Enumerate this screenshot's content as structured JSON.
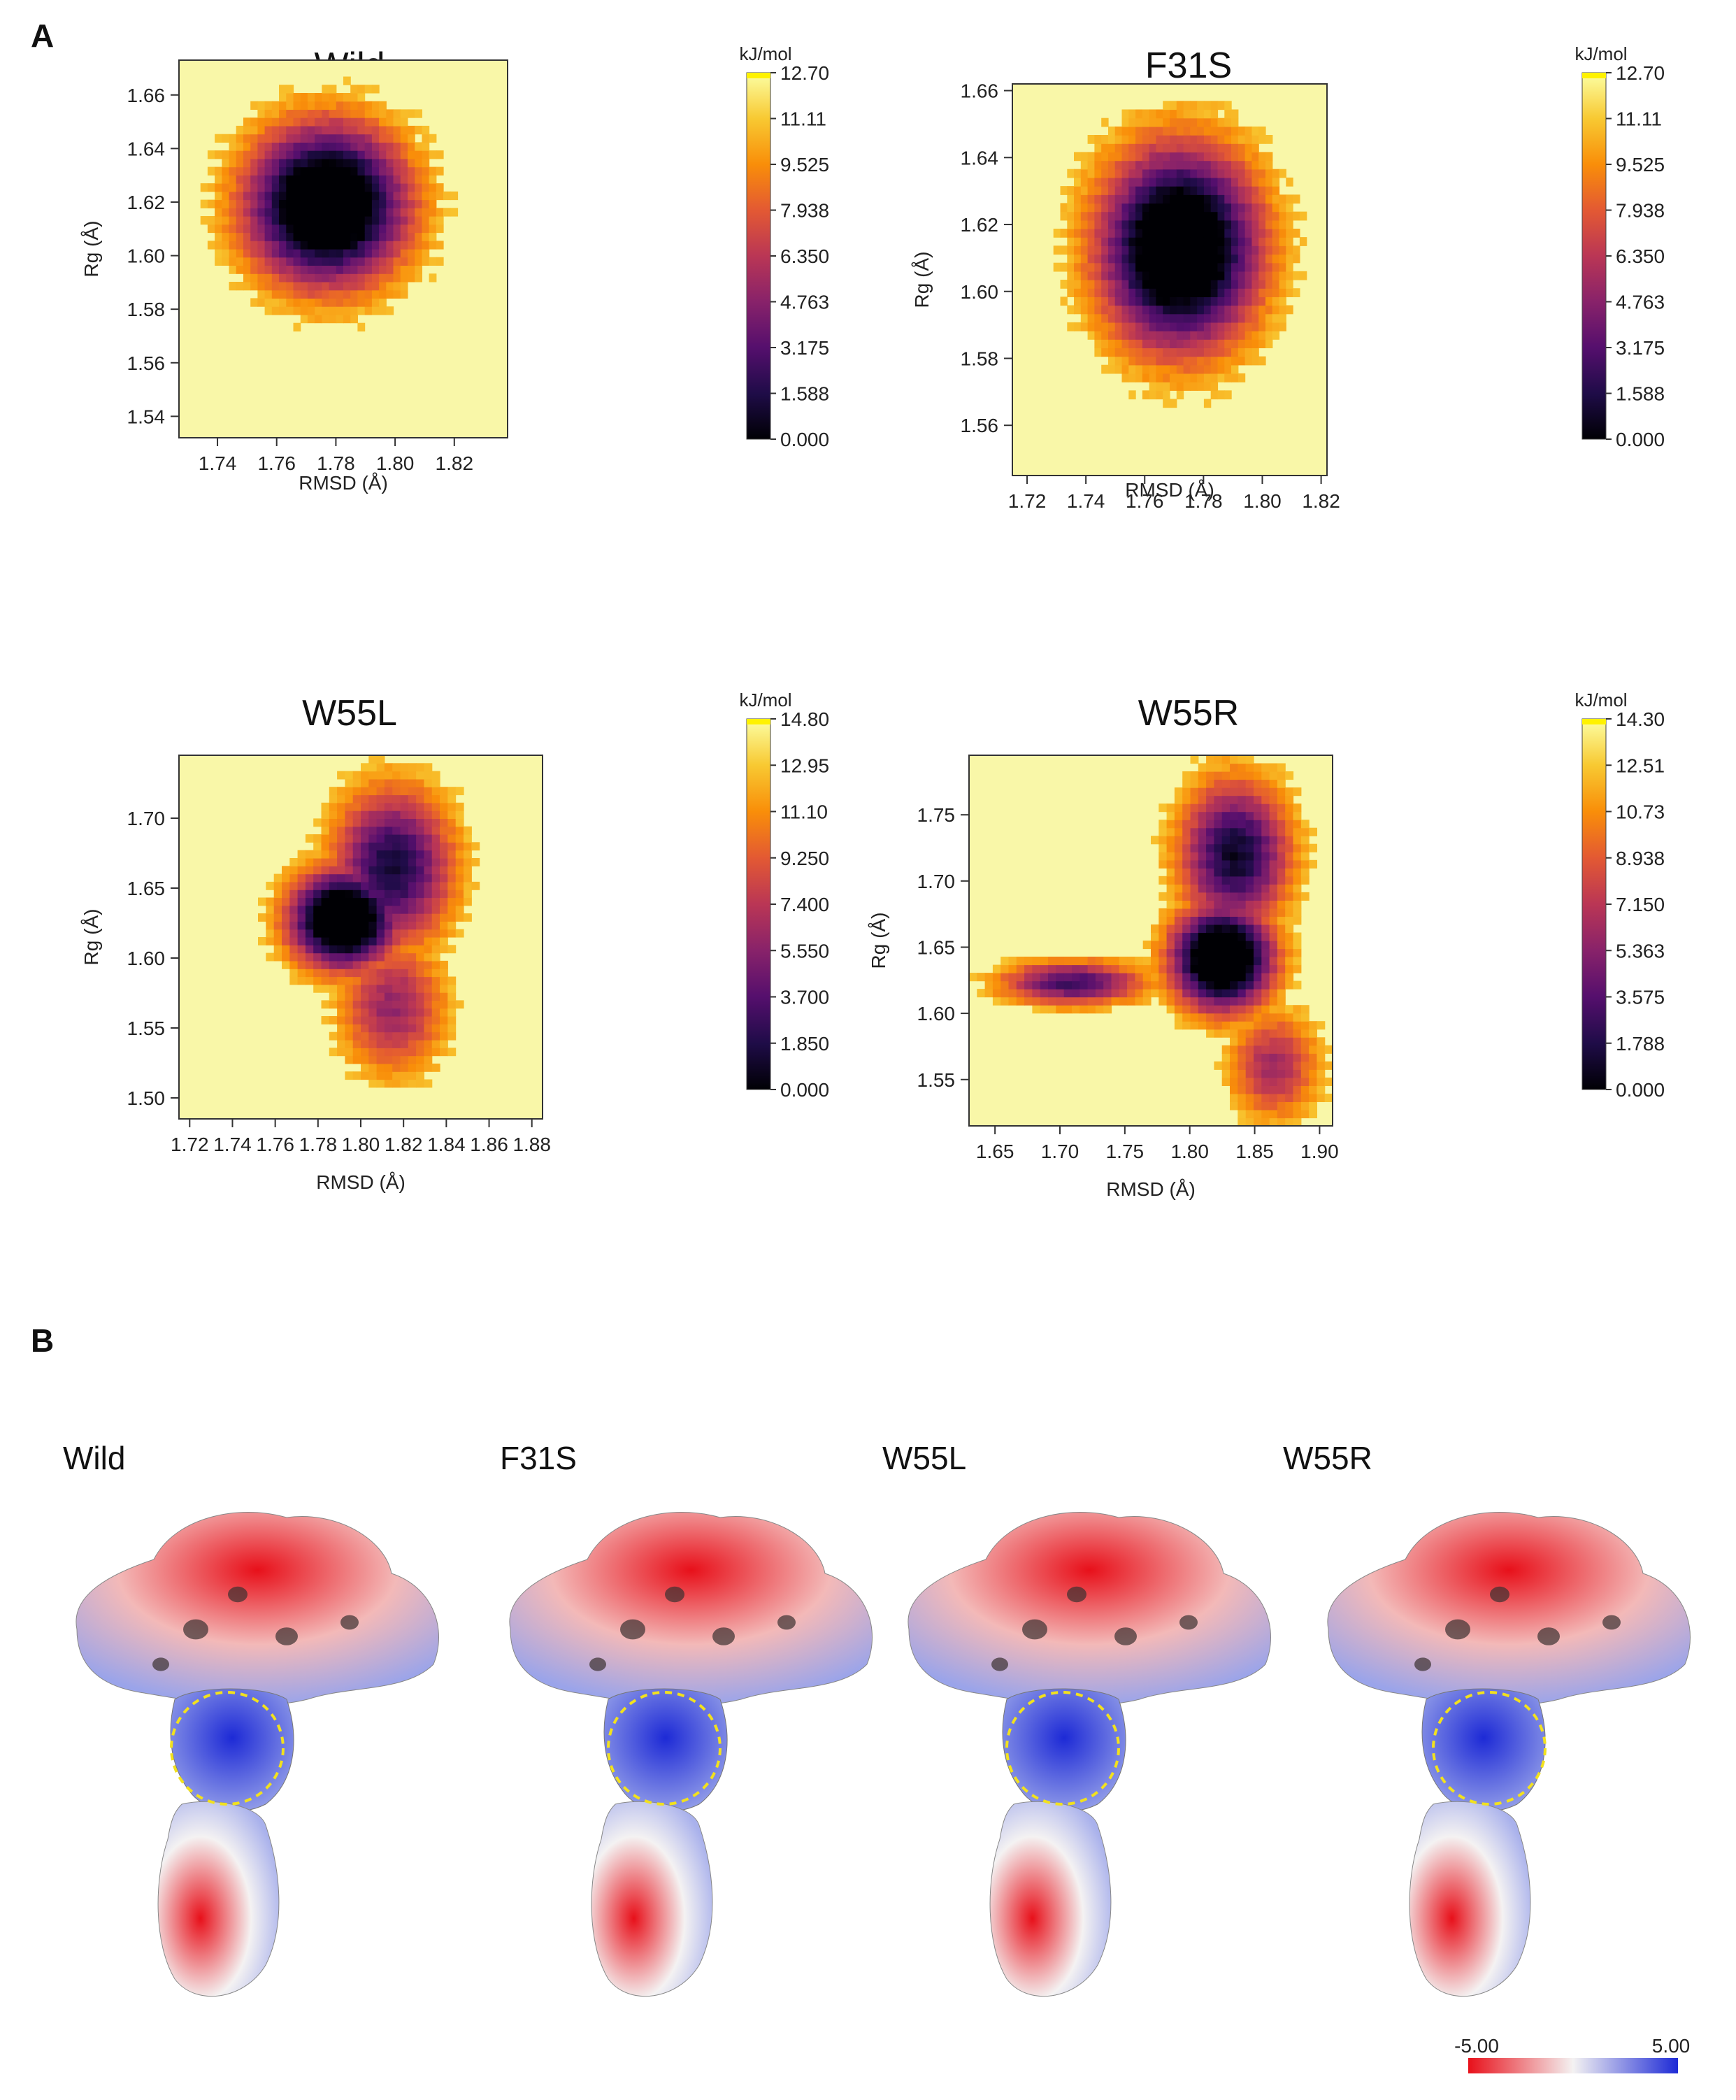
{
  "panel_a_label": "A",
  "panel_b_label": "B",
  "chart_data": [
    {
      "type": "heatmap",
      "title": "Wild",
      "xlabel": "RMSD (Å)",
      "ylabel": "Rg (Å)",
      "xlim": [
        1.727,
        1.838
      ],
      "ylim": [
        1.532,
        1.673
      ],
      "xticks": [
        "1.74",
        "1.76",
        "1.78",
        "1.80",
        "1.82"
      ],
      "yticks": [
        "1.54",
        "1.56",
        "1.58",
        "1.60",
        "1.62",
        "1.64",
        "1.66"
      ],
      "colorbar": {
        "unit": "kJ/mol",
        "ticks": [
          "0.000",
          "1.588",
          "3.175",
          "4.763",
          "6.350",
          "7.938",
          "9.525",
          "11.11",
          "12.70"
        ],
        "min": 0,
        "max": 12.7
      },
      "basins": [
        {
          "x": 1.777,
          "y": 1.619,
          "sx": 0.019,
          "sy": 0.021,
          "depth": 12.7
        }
      ]
    },
    {
      "type": "heatmap",
      "title": "F31S",
      "xlabel": "RMSD (Å)",
      "ylabel": "Rg (Å)",
      "xlim": [
        1.715,
        1.822
      ],
      "ylim": [
        1.545,
        1.662
      ],
      "xticks": [
        "1.72",
        "1.74",
        "1.76",
        "1.78",
        "1.80",
        "1.82"
      ],
      "yticks": [
        "1.56",
        "1.58",
        "1.60",
        "1.62",
        "1.64",
        "1.66"
      ],
      "colorbar": {
        "unit": "kJ/mol",
        "ticks": [
          "0.000",
          "1.588",
          "3.175",
          "4.763",
          "6.350",
          "7.938",
          "9.525",
          "11.11",
          "12.70"
        ],
        "min": 0,
        "max": 12.7
      },
      "basins": [
        {
          "x": 1.772,
          "y": 1.613,
          "sx": 0.019,
          "sy": 0.021,
          "depth": 12.7
        }
      ]
    },
    {
      "type": "heatmap",
      "title": "W55L",
      "xlabel": "RMSD (Å)",
      "ylabel": "Rg (Å)",
      "xlim": [
        1.715,
        1.885
      ],
      "ylim": [
        1.485,
        1.745
      ],
      "xticks": [
        "1.72",
        "1.74",
        "1.76",
        "1.78",
        "1.80",
        "1.82",
        "1.84",
        "1.86",
        "1.88"
      ],
      "yticks": [
        "1.50",
        "1.55",
        "1.60",
        "1.65",
        "1.70"
      ],
      "colorbar": {
        "unit": "kJ/mol",
        "ticks": [
          "0.000",
          "1.850",
          "3.700",
          "5.550",
          "7.400",
          "9.250",
          "11.10",
          "12.95",
          "14.80"
        ],
        "min": 0,
        "max": 14.8
      },
      "basins": [
        {
          "x": 1.792,
          "y": 1.628,
          "sx": 0.018,
          "sy": 0.025,
          "depth": 14.8
        },
        {
          "x": 1.815,
          "y": 1.665,
          "sx": 0.02,
          "sy": 0.04,
          "depth": 10.0
        },
        {
          "x": 1.815,
          "y": 1.565,
          "sx": 0.018,
          "sy": 0.035,
          "depth": 6.5
        }
      ]
    },
    {
      "type": "heatmap",
      "title": "W55R",
      "xlabel": "RMSD (Å)",
      "ylabel": "Rg (Å)",
      "xlim": [
        1.63,
        1.91
      ],
      "ylim": [
        1.515,
        1.795
      ],
      "xticks": [
        "1.65",
        "1.70",
        "1.75",
        "1.80",
        "1.85",
        "1.90"
      ],
      "yticks": [
        "1.55",
        "1.60",
        "1.65",
        "1.70",
        "1.75"
      ],
      "colorbar": {
        "unit": "kJ/mol",
        "ticks": [
          "0.000",
          "1.788",
          "3.575",
          "5.363",
          "7.150",
          "8.938",
          "10.73",
          "12.51",
          "14.30"
        ],
        "min": 0,
        "max": 14.3
      },
      "basins": [
        {
          "x": 1.825,
          "y": 1.642,
          "sx": 0.028,
          "sy": 0.028,
          "depth": 14.3
        },
        {
          "x": 1.835,
          "y": 1.72,
          "sx": 0.03,
          "sy": 0.04,
          "depth": 10.0
        },
        {
          "x": 1.71,
          "y": 1.623,
          "sx": 0.04,
          "sy": 0.012,
          "depth": 8.5
        },
        {
          "x": 1.865,
          "y": 1.56,
          "sx": 0.025,
          "sy": 0.03,
          "depth": 6.0
        }
      ]
    }
  ],
  "surfaces": [
    {
      "label": "Wild",
      "circle_dx": -5
    },
    {
      "label": "F31S",
      "circle_dx": 0
    },
    {
      "label": "W55L",
      "circle_dx": 0
    },
    {
      "label": "W55R",
      "circle_dx": 10
    }
  ],
  "esp_scale": {
    "min_label": "-5.00",
    "max_label": "5.00"
  },
  "colors": {
    "inferno": [
      "#000004",
      "#1f0c48",
      "#550f6d",
      "#88226a",
      "#ba3655",
      "#e35933",
      "#f98e09",
      "#f8c932",
      "#fcffa4"
    ],
    "background_high": "#f9f7a8",
    "esp_negative": "#e8101a",
    "esp_neutral": "#f4f2f2",
    "esp_positive": "#1d2ad6",
    "circle": "#f2e11e"
  }
}
